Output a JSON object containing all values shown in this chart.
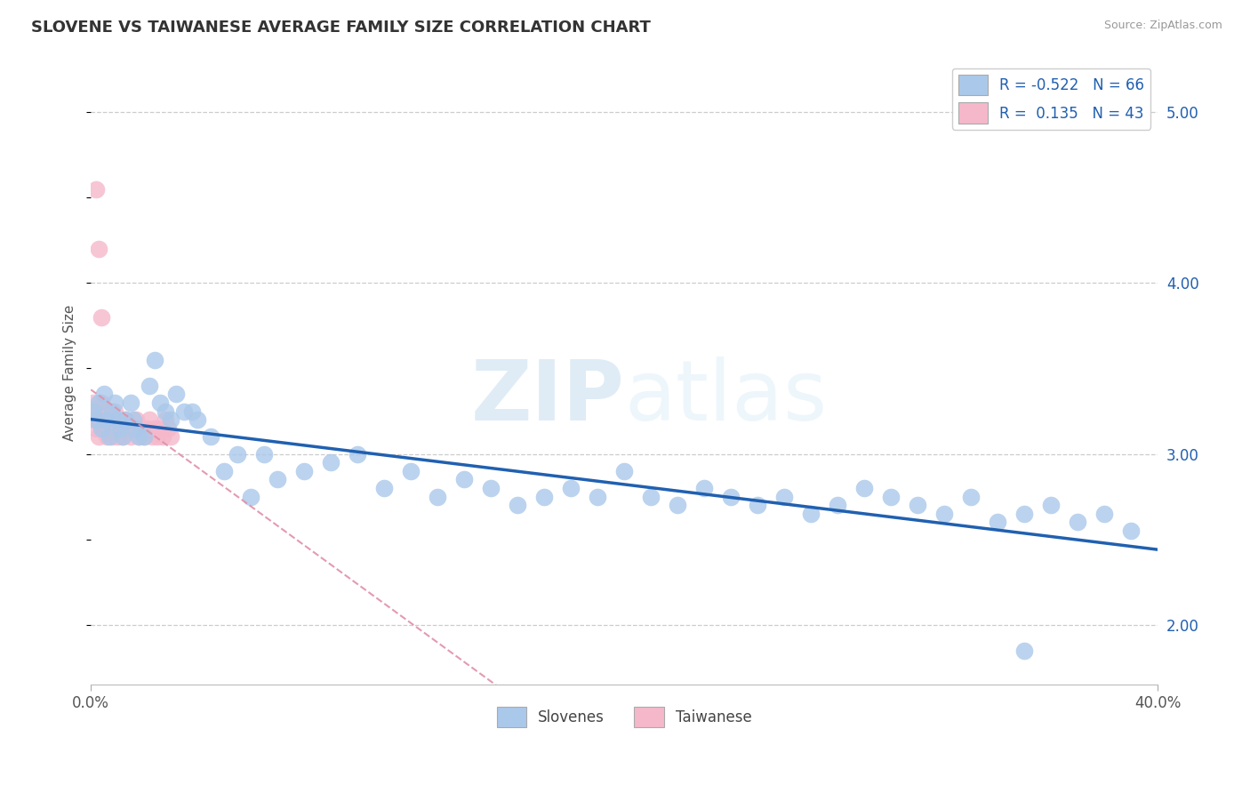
{
  "title": "SLOVENE VS TAIWANESE AVERAGE FAMILY SIZE CORRELATION CHART",
  "source_text": "Source: ZipAtlas.com",
  "ylabel": "Average Family Size",
  "xmin": 0.0,
  "xmax": 0.4,
  "ymin": 1.65,
  "ymax": 5.3,
  "yticks_right": [
    2.0,
    3.0,
    4.0,
    5.0
  ],
  "grid_color": "#cccccc",
  "background_color": "#ffffff",
  "slovene_color": "#aac8ea",
  "taiwanese_color": "#f5b8cb",
  "slovene_line_color": "#2060b0",
  "taiwanese_line_color": "#e090a8",
  "R_slovene_text": "R = -0.522",
  "N_slovene_text": "N = 66",
  "R_taiwanese_text": "R =  0.135",
  "N_taiwanese_text": "N = 43",
  "legend_slovene_label": "Slovenes",
  "legend_taiwanese_label": "Taiwanese",
  "slovene_scatter_x": [
    0.001,
    0.002,
    0.003,
    0.004,
    0.005,
    0.006,
    0.007,
    0.008,
    0.009,
    0.01,
    0.011,
    0.012,
    0.013,
    0.015,
    0.016,
    0.017,
    0.018,
    0.02,
    0.022,
    0.024,
    0.026,
    0.028,
    0.03,
    0.032,
    0.035,
    0.038,
    0.04,
    0.045,
    0.05,
    0.055,
    0.06,
    0.065,
    0.07,
    0.08,
    0.09,
    0.1,
    0.11,
    0.12,
    0.13,
    0.14,
    0.15,
    0.16,
    0.17,
    0.18,
    0.19,
    0.2,
    0.21,
    0.22,
    0.23,
    0.24,
    0.25,
    0.26,
    0.27,
    0.28,
    0.29,
    0.3,
    0.31,
    0.32,
    0.33,
    0.34,
    0.35,
    0.36,
    0.37,
    0.38,
    0.39,
    0.35
  ],
  "slovene_scatter_y": [
    3.25,
    3.2,
    3.3,
    3.15,
    3.35,
    3.2,
    3.1,
    3.25,
    3.3,
    3.2,
    3.15,
    3.1,
    3.2,
    3.3,
    3.2,
    3.15,
    3.1,
    3.1,
    3.4,
    3.55,
    3.3,
    3.25,
    3.2,
    3.35,
    3.25,
    3.25,
    3.2,
    3.1,
    2.9,
    3.0,
    2.75,
    3.0,
    2.85,
    2.9,
    2.95,
    3.0,
    2.8,
    2.9,
    2.75,
    2.85,
    2.8,
    2.7,
    2.75,
    2.8,
    2.75,
    2.9,
    2.75,
    2.7,
    2.8,
    2.75,
    2.7,
    2.75,
    2.65,
    2.7,
    2.8,
    2.75,
    2.7,
    2.65,
    2.75,
    2.6,
    2.65,
    2.7,
    2.6,
    2.65,
    2.55,
    1.85
  ],
  "taiwanese_scatter_x": [
    0.001,
    0.001,
    0.002,
    0.002,
    0.003,
    0.003,
    0.004,
    0.004,
    0.005,
    0.005,
    0.006,
    0.006,
    0.007,
    0.007,
    0.008,
    0.008,
    0.009,
    0.009,
    0.01,
    0.01,
    0.011,
    0.012,
    0.013,
    0.014,
    0.015,
    0.016,
    0.017,
    0.018,
    0.019,
    0.02,
    0.021,
    0.022,
    0.023,
    0.024,
    0.025,
    0.026,
    0.027,
    0.028,
    0.029,
    0.03,
    0.002,
    0.003,
    0.004
  ],
  "taiwanese_scatter_y": [
    3.2,
    3.3,
    3.25,
    3.15,
    3.1,
    3.2,
    3.25,
    3.3,
    3.15,
    3.2,
    3.1,
    3.25,
    3.15,
    3.2,
    3.1,
    3.2,
    3.25,
    3.15,
    3.2,
    3.1,
    3.15,
    3.1,
    3.2,
    3.15,
    3.1,
    3.15,
    3.2,
    3.1,
    3.15,
    3.1,
    3.15,
    3.2,
    3.1,
    3.15,
    3.1,
    3.15,
    3.1,
    3.2,
    3.15,
    3.1,
    4.55,
    4.2,
    3.8
  ],
  "watermark_zip": "ZIP",
  "watermark_atlas": "atlas",
  "title_fontsize": 13,
  "axis_label_fontsize": 11,
  "tick_fontsize": 11,
  "legend_fontsize": 12
}
